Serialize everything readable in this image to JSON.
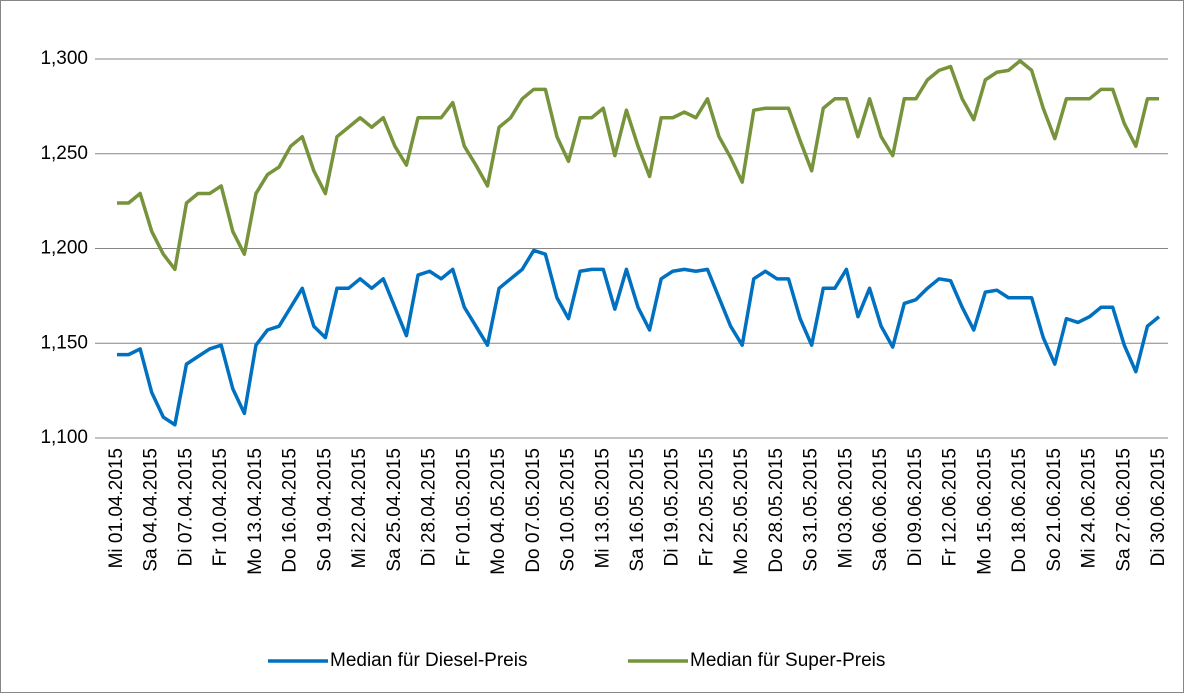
{
  "chart_data": {
    "type": "line",
    "categories": [
      "Mi 01.04.2015",
      null,
      null,
      "Sa 04.04.2015",
      null,
      null,
      "Di 07.04.2015",
      null,
      null,
      "Fr 10.04.2015",
      null,
      null,
      "Mo 13.04.2015",
      null,
      null,
      "Do 16.04.2015",
      null,
      null,
      "So 19.04.2015",
      null,
      null,
      "Mi 22.04.2015",
      null,
      null,
      "Sa 25.04.2015",
      null,
      null,
      "Di 28.04.2015",
      null,
      null,
      "Fr 01.05.2015",
      null,
      null,
      "Mo 04.05.2015",
      null,
      null,
      "Do 07.05.2015",
      null,
      null,
      "So 10.05.2015",
      null,
      null,
      "Mi 13.05.2015",
      null,
      null,
      "Sa 16.05.2015",
      null,
      null,
      "Di 19.05.2015",
      null,
      null,
      "Fr 22.05.2015",
      null,
      null,
      "Mo 25.05.2015",
      null,
      null,
      "Do 28.05.2015",
      null,
      null,
      "So 31.05.2015",
      null,
      null,
      "Mi 03.06.2015",
      null,
      null,
      "Sa 06.06.2015",
      null,
      null,
      "Di 09.06.2015",
      null,
      null,
      "Fr 12.06.2015",
      null,
      null,
      "Mo 15.06.2015",
      null,
      null,
      "Do 18.06.2015",
      null,
      null,
      "So 21.06.2015",
      null,
      null,
      "Mi 24.06.2015",
      null,
      null,
      "Sa 27.06.2015",
      null,
      null,
      "Di 30.06.2015"
    ],
    "series": [
      {
        "name": "Median für Diesel-Preis",
        "color": "#0070c0",
        "values": [
          1.144,
          1.144,
          1.147,
          1.124,
          1.111,
          1.107,
          1.139,
          1.143,
          1.147,
          1.149,
          1.126,
          1.113,
          1.149,
          1.157,
          1.159,
          1.169,
          1.179,
          1.159,
          1.153,
          1.179,
          1.179,
          1.184,
          1.179,
          1.184,
          1.169,
          1.154,
          1.186,
          1.188,
          1.184,
          1.189,
          1.169,
          1.159,
          1.149,
          1.179,
          1.184,
          1.189,
          1.199,
          1.197,
          1.174,
          1.163,
          1.188,
          1.189,
          1.189,
          1.168,
          1.189,
          1.169,
          1.157,
          1.184,
          1.188,
          1.189,
          1.188,
          1.189,
          1.174,
          1.159,
          1.149,
          1.184,
          1.188,
          1.184,
          1.184,
          1.163,
          1.149,
          1.179,
          1.179,
          1.189,
          1.164,
          1.179,
          1.159,
          1.148,
          1.171,
          1.173,
          1.179,
          1.184,
          1.183,
          1.169,
          1.157,
          1.177,
          1.178,
          1.174,
          1.174,
          1.174,
          1.153,
          1.139,
          1.163,
          1.161,
          1.164,
          1.169,
          1.169,
          1.149,
          1.135,
          1.159,
          1.164
        ]
      },
      {
        "name": "Median für Super-Preis",
        "color": "#77933c",
        "values": [
          1.224,
          1.224,
          1.229,
          1.209,
          1.197,
          1.189,
          1.224,
          1.229,
          1.229,
          1.233,
          1.209,
          1.197,
          1.229,
          1.239,
          1.243,
          1.254,
          1.259,
          1.241,
          1.229,
          1.259,
          1.264,
          1.269,
          1.264,
          1.269,
          1.254,
          1.244,
          1.269,
          1.269,
          1.269,
          1.277,
          1.254,
          1.244,
          1.233,
          1.264,
          1.269,
          1.279,
          1.284,
          1.284,
          1.259,
          1.246,
          1.269,
          1.269,
          1.274,
          1.249,
          1.273,
          1.254,
          1.238,
          1.269,
          1.269,
          1.272,
          1.269,
          1.279,
          1.259,
          1.248,
          1.235,
          1.273,
          1.274,
          1.274,
          1.274,
          1.257,
          1.241,
          1.274,
          1.279,
          1.279,
          1.259,
          1.279,
          1.259,
          1.249,
          1.279,
          1.279,
          1.289,
          1.294,
          1.296,
          1.279,
          1.268,
          1.289,
          1.293,
          1.294,
          1.299,
          1.294,
          1.274,
          1.258,
          1.279,
          1.279,
          1.279,
          1.284,
          1.284,
          1.266,
          1.254,
          1.279,
          1.279
        ]
      }
    ],
    "ylim": [
      1.1,
      1.3
    ],
    "yticks": [
      {
        "value": 1.1,
        "label": "1,100"
      },
      {
        "value": 1.15,
        "label": "1,150"
      },
      {
        "value": 1.2,
        "label": "1,200"
      },
      {
        "value": 1.25,
        "label": "1,250"
      },
      {
        "value": 1.3,
        "label": "1,300"
      }
    ],
    "grid": true,
    "legend": "bottom"
  }
}
